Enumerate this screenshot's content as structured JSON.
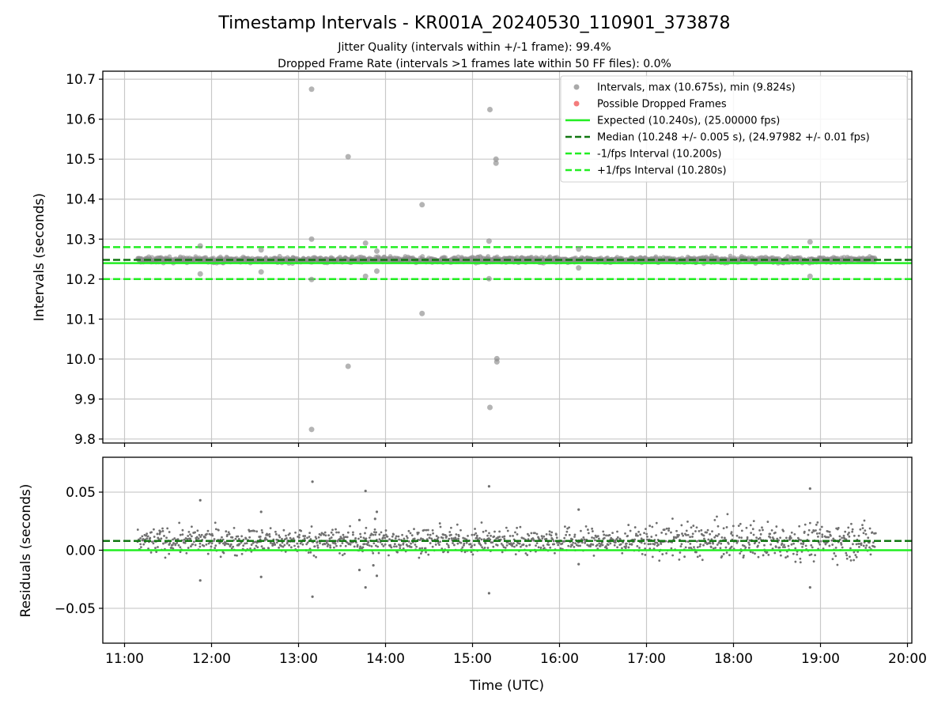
{
  "figure": {
    "title": "Timestamp Intervals - KR001A_20240530_110901_373878",
    "subtitle_1": "Jitter Quality (intervals within +/-1 frame): 99.4%",
    "subtitle_2": "Dropped Frame Rate (intervals >1 frames late within 50 FF files): 0.0%"
  },
  "colors": {
    "interval_points": "#8c8c8c",
    "dropped_points": "#f05050",
    "expected_line": "#22ee22",
    "median_line": "#117711",
    "bound_lines": "#22ee22",
    "grid": "#c8c8c8",
    "residual_points": "#707070"
  },
  "chart_data": [
    {
      "type": "scatter",
      "ylabel": "Intervals (seconds)",
      "xlabel": "",
      "xlim": [
        10.75,
        20.05
      ],
      "ylim": [
        9.79,
        10.72
      ],
      "x_ticks": [
        11,
        12,
        13,
        14,
        15,
        16,
        17,
        18,
        19,
        20
      ],
      "y_ticks": [
        9.8,
        9.9,
        10.0,
        10.1,
        10.2,
        10.3,
        10.4,
        10.5,
        10.6,
        10.7
      ],
      "y_tick_labels": [
        "9.8",
        "9.9",
        "10.0",
        "10.1",
        "10.2",
        "10.3",
        "10.4",
        "10.5",
        "10.6",
        "10.7"
      ],
      "grid": true,
      "legend_placement": "top-right",
      "legend": [
        {
          "label": "Intervals, max (10.675s), min (9.824s)",
          "kind": "point",
          "color_key": "interval_points"
        },
        {
          "label": "Possible Dropped Frames",
          "kind": "point",
          "color_key": "dropped_points"
        },
        {
          "label": "Expected (10.240s), (25.00000 fps)",
          "kind": "solid",
          "color_key": "expected_line"
        },
        {
          "label": "Median (10.248 +/- 0.005 s), (24.97982 +/- 0.01 fps)",
          "kind": "dashed",
          "color_key": "median_line"
        },
        {
          "label": "-1/fps Interval (10.200s)",
          "kind": "dashed",
          "color_key": "bound_lines"
        },
        {
          "label": "+1/fps Interval (10.280s)",
          "kind": "dashed",
          "color_key": "bound_lines"
        }
      ],
      "reference_lines": {
        "expected": 10.24,
        "median": 10.248,
        "lower": 10.2,
        "upper": 10.28
      },
      "band": {
        "x_start": 11.15,
        "x_end": 19.63,
        "center": 10.248
      },
      "outliers": [
        {
          "x": 13.15,
          "y": 10.675
        },
        {
          "x": 13.15,
          "y": 9.824
        },
        {
          "x": 13.15,
          "y": 10.3
        },
        {
          "x": 13.15,
          "y": 10.199
        },
        {
          "x": 13.57,
          "y": 10.506
        },
        {
          "x": 13.57,
          "y": 9.982
        },
        {
          "x": 13.9,
          "y": 10.27
        },
        {
          "x": 13.9,
          "y": 10.22
        },
        {
          "x": 13.77,
          "y": 10.29
        },
        {
          "x": 13.77,
          "y": 10.207
        },
        {
          "x": 14.42,
          "y": 10.386
        },
        {
          "x": 14.42,
          "y": 10.114
        },
        {
          "x": 15.2,
          "y": 10.624
        },
        {
          "x": 15.2,
          "y": 9.879
        },
        {
          "x": 15.19,
          "y": 10.295
        },
        {
          "x": 15.19,
          "y": 10.201
        },
        {
          "x": 15.27,
          "y": 10.5
        },
        {
          "x": 15.27,
          "y": 10.49
        },
        {
          "x": 15.28,
          "y": 10.001
        },
        {
          "x": 15.28,
          "y": 9.993
        },
        {
          "x": 11.87,
          "y": 10.283
        },
        {
          "x": 11.87,
          "y": 10.213
        },
        {
          "x": 12.57,
          "y": 10.273
        },
        {
          "x": 12.57,
          "y": 10.218
        },
        {
          "x": 16.22,
          "y": 10.275
        },
        {
          "x": 16.22,
          "y": 10.228
        },
        {
          "x": 18.88,
          "y": 10.293
        },
        {
          "x": 18.88,
          "y": 10.207
        }
      ]
    },
    {
      "type": "scatter",
      "ylabel": "Residuals (seconds)",
      "xlabel": "Time (UTC)",
      "xlim": [
        10.75,
        20.05
      ],
      "ylim": [
        -0.08,
        0.08
      ],
      "x_ticks": [
        11,
        12,
        13,
        14,
        15,
        16,
        17,
        18,
        19,
        20
      ],
      "x_tick_labels": [
        "11:00",
        "12:00",
        "13:00",
        "14:00",
        "15:00",
        "16:00",
        "17:00",
        "18:00",
        "19:00",
        "20:00"
      ],
      "y_ticks": [
        -0.05,
        0.0,
        0.05
      ],
      "y_tick_labels": [
        "−0.05",
        "0.00",
        "0.05"
      ],
      "grid": true,
      "reference_lines": {
        "zero": 0.0,
        "median": 0.008
      },
      "band": {
        "x_start": 11.15,
        "x_end": 19.63,
        "center": 0.008
      },
      "outliers": [
        {
          "x": 13.16,
          "y": 0.059
        },
        {
          "x": 13.16,
          "y": -0.04
        },
        {
          "x": 11.87,
          "y": 0.043
        },
        {
          "x": 11.87,
          "y": -0.026
        },
        {
          "x": 12.57,
          "y": 0.033
        },
        {
          "x": 12.57,
          "y": -0.023
        },
        {
          "x": 13.7,
          "y": 0.026
        },
        {
          "x": 13.7,
          "y": -0.017
        },
        {
          "x": 13.77,
          "y": 0.051
        },
        {
          "x": 13.77,
          "y": -0.032
        },
        {
          "x": 13.9,
          "y": 0.033
        },
        {
          "x": 13.9,
          "y": -0.022
        },
        {
          "x": 13.88,
          "y": 0.027
        },
        {
          "x": 13.86,
          "y": -0.013
        },
        {
          "x": 15.19,
          "y": 0.055
        },
        {
          "x": 15.19,
          "y": -0.037
        },
        {
          "x": 16.22,
          "y": 0.035
        },
        {
          "x": 16.22,
          "y": -0.012
        },
        {
          "x": 18.88,
          "y": 0.053
        },
        {
          "x": 18.88,
          "y": -0.032
        }
      ]
    }
  ]
}
